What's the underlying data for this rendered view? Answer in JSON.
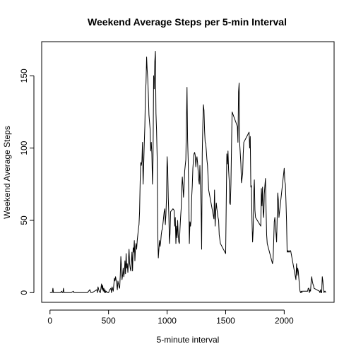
{
  "chart_data": {
    "type": "line",
    "title": "Weekend Average Steps per 5-min Interval",
    "xlabel": "5-minute interval",
    "ylabel": "Weekend Average Steps",
    "xlim": [
      -71,
      2426
    ],
    "ylim": [
      -6.7,
      173.6
    ],
    "x_ticks": [
      0,
      500,
      1000,
      1500,
      2000
    ],
    "x_tick_labels": [
      "0",
      "500",
      "1000",
      "1500",
      "2000"
    ],
    "y_ticks": [
      0,
      50,
      100,
      150
    ],
    "y_tick_labels": [
      "0",
      "50",
      "100",
      "150"
    ],
    "grid": false,
    "series": [
      {
        "color": "#000000",
        "points": [
          [
            0,
            0
          ],
          [
            10,
            0
          ],
          [
            15,
            0
          ],
          [
            20,
            0
          ],
          [
            25,
            3
          ],
          [
            30,
            0
          ],
          [
            40,
            0
          ],
          [
            50,
            0
          ],
          [
            60,
            0
          ],
          [
            75,
            0
          ],
          [
            80,
            0
          ],
          [
            90,
            0
          ],
          [
            100,
            1
          ],
          [
            105,
            0
          ],
          [
            110,
            0
          ],
          [
            115,
            3
          ],
          [
            120,
            0
          ],
          [
            140,
            0
          ],
          [
            160,
            0
          ],
          [
            180,
            0
          ],
          [
            200,
            1
          ],
          [
            205,
            0
          ],
          [
            220,
            0
          ],
          [
            250,
            0
          ],
          [
            280,
            0
          ],
          [
            300,
            0
          ],
          [
            320,
            0
          ],
          [
            330,
            1
          ],
          [
            340,
            2
          ],
          [
            350,
            0
          ],
          [
            360,
            0
          ],
          [
            380,
            1
          ],
          [
            400,
            2
          ],
          [
            405,
            0
          ],
          [
            410,
            4
          ],
          [
            420,
            1
          ],
          [
            430,
            0
          ],
          [
            440,
            6
          ],
          [
            445,
            2
          ],
          [
            450,
            5
          ],
          [
            455,
            1
          ],
          [
            460,
            3
          ],
          [
            465,
            0
          ],
          [
            470,
            2
          ],
          [
            475,
            0
          ],
          [
            480,
            1
          ],
          [
            490,
            0
          ],
          [
            500,
            0
          ],
          [
            510,
            2
          ],
          [
            520,
            3
          ],
          [
            525,
            0
          ],
          [
            530,
            4
          ],
          [
            540,
            1
          ],
          [
            550,
            10
          ],
          [
            555,
            8
          ],
          [
            560,
            11
          ],
          [
            570,
            6
          ],
          [
            575,
            2
          ],
          [
            580,
            8
          ],
          [
            590,
            4
          ],
          [
            595,
            3
          ],
          [
            600,
            12
          ],
          [
            605,
            25
          ],
          [
            610,
            18
          ],
          [
            615,
            9
          ],
          [
            620,
            12
          ],
          [
            625,
            17
          ],
          [
            630,
            11
          ],
          [
            635,
            14
          ],
          [
            640,
            22
          ],
          [
            645,
            13
          ],
          [
            650,
            27
          ],
          [
            655,
            17
          ],
          [
            660,
            20
          ],
          [
            665,
            14
          ],
          [
            670,
            22
          ],
          [
            675,
            30
          ],
          [
            680,
            20
          ],
          [
            685,
            17
          ],
          [
            690,
            15
          ],
          [
            700,
            28
          ],
          [
            705,
            15
          ],
          [
            710,
            31
          ],
          [
            715,
            28
          ],
          [
            720,
            36
          ],
          [
            725,
            22
          ],
          [
            730,
            31
          ],
          [
            735,
            34
          ],
          [
            740,
            30
          ],
          [
            745,
            36
          ],
          [
            750,
            40
          ],
          [
            755,
            44
          ],
          [
            760,
            47
          ],
          [
            765,
            56
          ],
          [
            770,
            77
          ],
          [
            775,
            90
          ],
          [
            780,
            88
          ],
          [
            785,
            91
          ],
          [
            790,
            104
          ],
          [
            795,
            75
          ],
          [
            800,
            88
          ],
          [
            805,
            103
          ],
          [
            810,
            115
          ],
          [
            815,
            138
          ],
          [
            820,
            145
          ],
          [
            825,
            163
          ],
          [
            830,
            154
          ],
          [
            835,
            148
          ],
          [
            840,
            137
          ],
          [
            845,
            123
          ],
          [
            850,
            118
          ],
          [
            855,
            113
          ],
          [
            860,
            98
          ],
          [
            865,
            104
          ],
          [
            870,
            96
          ],
          [
            875,
            75
          ],
          [
            880,
            92
          ],
          [
            885,
            150
          ],
          [
            890,
            141
          ],
          [
            895,
            160
          ],
          [
            900,
            167
          ],
          [
            905,
            124
          ],
          [
            910,
            112
          ],
          [
            915,
            94
          ],
          [
            920,
            42
          ],
          [
            925,
            24
          ],
          [
            930,
            30
          ],
          [
            935,
            36
          ],
          [
            940,
            32
          ],
          [
            945,
            35
          ],
          [
            950,
            40
          ],
          [
            955,
            43
          ],
          [
            960,
            44
          ],
          [
            965,
            48
          ],
          [
            970,
            52
          ],
          [
            975,
            56
          ],
          [
            980,
            58
          ],
          [
            985,
            47
          ],
          [
            990,
            54
          ],
          [
            995,
            66
          ],
          [
            1000,
            94
          ],
          [
            1005,
            86
          ],
          [
            1010,
            66
          ],
          [
            1015,
            53
          ],
          [
            1020,
            34
          ],
          [
            1025,
            41
          ],
          [
            1030,
            56
          ],
          [
            1040,
            57
          ],
          [
            1050,
            58
          ],
          [
            1060,
            57
          ],
          [
            1065,
            46
          ],
          [
            1070,
            52
          ],
          [
            1075,
            34
          ],
          [
            1080,
            46
          ],
          [
            1085,
            38
          ],
          [
            1090,
            50
          ],
          [
            1095,
            40
          ],
          [
            1100,
            35
          ],
          [
            1105,
            34
          ],
          [
            1110,
            44
          ],
          [
            1115,
            52
          ],
          [
            1120,
            58
          ],
          [
            1125,
            72
          ],
          [
            1130,
            80
          ],
          [
            1135,
            74
          ],
          [
            1140,
            66
          ],
          [
            1145,
            73
          ],
          [
            1150,
            84
          ],
          [
            1155,
            88
          ],
          [
            1160,
            92
          ],
          [
            1165,
            118
          ],
          [
            1170,
            142
          ],
          [
            1175,
            106
          ],
          [
            1180,
            92
          ],
          [
            1185,
            67
          ],
          [
            1190,
            34
          ],
          [
            1195,
            49
          ],
          [
            1200,
            46
          ],
          [
            1205,
            50
          ],
          [
            1210,
            66
          ],
          [
            1215,
            74
          ],
          [
            1220,
            86
          ],
          [
            1225,
            92
          ],
          [
            1230,
            96
          ],
          [
            1235,
            97
          ],
          [
            1240,
            95
          ],
          [
            1245,
            87
          ],
          [
            1250,
            92
          ],
          [
            1255,
            94
          ],
          [
            1260,
            90
          ],
          [
            1265,
            84
          ],
          [
            1270,
            78
          ],
          [
            1275,
            75
          ],
          [
            1280,
            88
          ],
          [
            1285,
            74
          ],
          [
            1290,
            60
          ],
          [
            1295,
            30
          ],
          [
            1300,
            96
          ],
          [
            1305,
            116
          ],
          [
            1310,
            130
          ],
          [
            1315,
            126
          ],
          [
            1320,
            112
          ],
          [
            1325,
            104
          ],
          [
            1330,
            103
          ],
          [
            1335,
            98
          ],
          [
            1340,
            92
          ],
          [
            1345,
            88
          ],
          [
            1350,
            80
          ],
          [
            1355,
            71
          ],
          [
            1400,
            51
          ],
          [
            1405,
            71
          ],
          [
            1410,
            46
          ],
          [
            1415,
            56
          ],
          [
            1420,
            62
          ],
          [
            1425,
            58
          ],
          [
            1430,
            55
          ],
          [
            1435,
            52
          ],
          [
            1440,
            50
          ],
          [
            1445,
            40
          ],
          [
            1450,
            37
          ],
          [
            1455,
            34
          ],
          [
            1500,
            27
          ],
          [
            1505,
            62
          ],
          [
            1510,
            96
          ],
          [
            1515,
            89
          ],
          [
            1520,
            98
          ],
          [
            1525,
            85
          ],
          [
            1530,
            78
          ],
          [
            1535,
            62
          ],
          [
            1540,
            61
          ],
          [
            1545,
            75
          ],
          [
            1550,
            101
          ],
          [
            1555,
            125
          ],
          [
            1600,
            115
          ],
          [
            1605,
            104
          ],
          [
            1610,
            139
          ],
          [
            1615,
            145
          ],
          [
            1620,
            103
          ],
          [
            1625,
            96
          ],
          [
            1630,
            89
          ],
          [
            1635,
            76
          ],
          [
            1640,
            79
          ],
          [
            1645,
            82
          ],
          [
            1650,
            96
          ],
          [
            1655,
            104
          ],
          [
            1700,
            111
          ],
          [
            1705,
            100
          ],
          [
            1710,
            108
          ],
          [
            1715,
            73
          ],
          [
            1720,
            74
          ],
          [
            1725,
            50
          ],
          [
            1730,
            35
          ],
          [
            1735,
            43
          ],
          [
            1740,
            69
          ],
          [
            1745,
            78
          ],
          [
            1750,
            57
          ],
          [
            1755,
            52
          ],
          [
            1800,
            46
          ],
          [
            1805,
            72
          ],
          [
            1810,
            60
          ],
          [
            1815,
            73
          ],
          [
            1820,
            56
          ],
          [
            1825,
            52
          ],
          [
            1830,
            68
          ],
          [
            1835,
            74
          ],
          [
            1840,
            79
          ],
          [
            1845,
            58
          ],
          [
            1850,
            40
          ],
          [
            1855,
            34
          ],
          [
            1900,
            20
          ],
          [
            1905,
            23
          ],
          [
            1910,
            35
          ],
          [
            1915,
            49
          ],
          [
            1920,
            52
          ],
          [
            1925,
            46
          ],
          [
            1930,
            41
          ],
          [
            1935,
            35
          ],
          [
            1940,
            52
          ],
          [
            1945,
            69
          ],
          [
            1950,
            64
          ],
          [
            1955,
            52
          ],
          [
            2000,
            86
          ],
          [
            2005,
            77
          ],
          [
            2010,
            75
          ],
          [
            2015,
            63
          ],
          [
            2020,
            49
          ],
          [
            2025,
            28
          ],
          [
            2030,
            29
          ],
          [
            2035,
            28
          ],
          [
            2040,
            29
          ],
          [
            2045,
            28
          ],
          [
            2050,
            29
          ],
          [
            2055,
            29
          ],
          [
            2100,
            9
          ],
          [
            2105,
            20
          ],
          [
            2110,
            12
          ],
          [
            2115,
            17
          ],
          [
            2120,
            15
          ],
          [
            2125,
            10
          ],
          [
            2130,
            5
          ],
          [
            2135,
            1
          ],
          [
            2140,
            0
          ],
          [
            2145,
            1
          ],
          [
            2150,
            0
          ],
          [
            2155,
            1
          ],
          [
            2200,
            1
          ],
          [
            2205,
            3
          ],
          [
            2210,
            3
          ],
          [
            2215,
            0
          ],
          [
            2220,
            2
          ],
          [
            2225,
            1
          ],
          [
            2230,
            8
          ],
          [
            2235,
            11
          ],
          [
            2240,
            8
          ],
          [
            2245,
            6
          ],
          [
            2250,
            5
          ],
          [
            2255,
            3
          ],
          [
            2300,
            1
          ],
          [
            2305,
            0
          ],
          [
            2310,
            2
          ],
          [
            2315,
            0
          ],
          [
            2320,
            0
          ],
          [
            2325,
            11
          ],
          [
            2330,
            8
          ],
          [
            2335,
            2
          ],
          [
            2340,
            0
          ],
          [
            2345,
            1
          ],
          [
            2350,
            1
          ],
          [
            2355,
            0
          ]
        ]
      }
    ]
  }
}
